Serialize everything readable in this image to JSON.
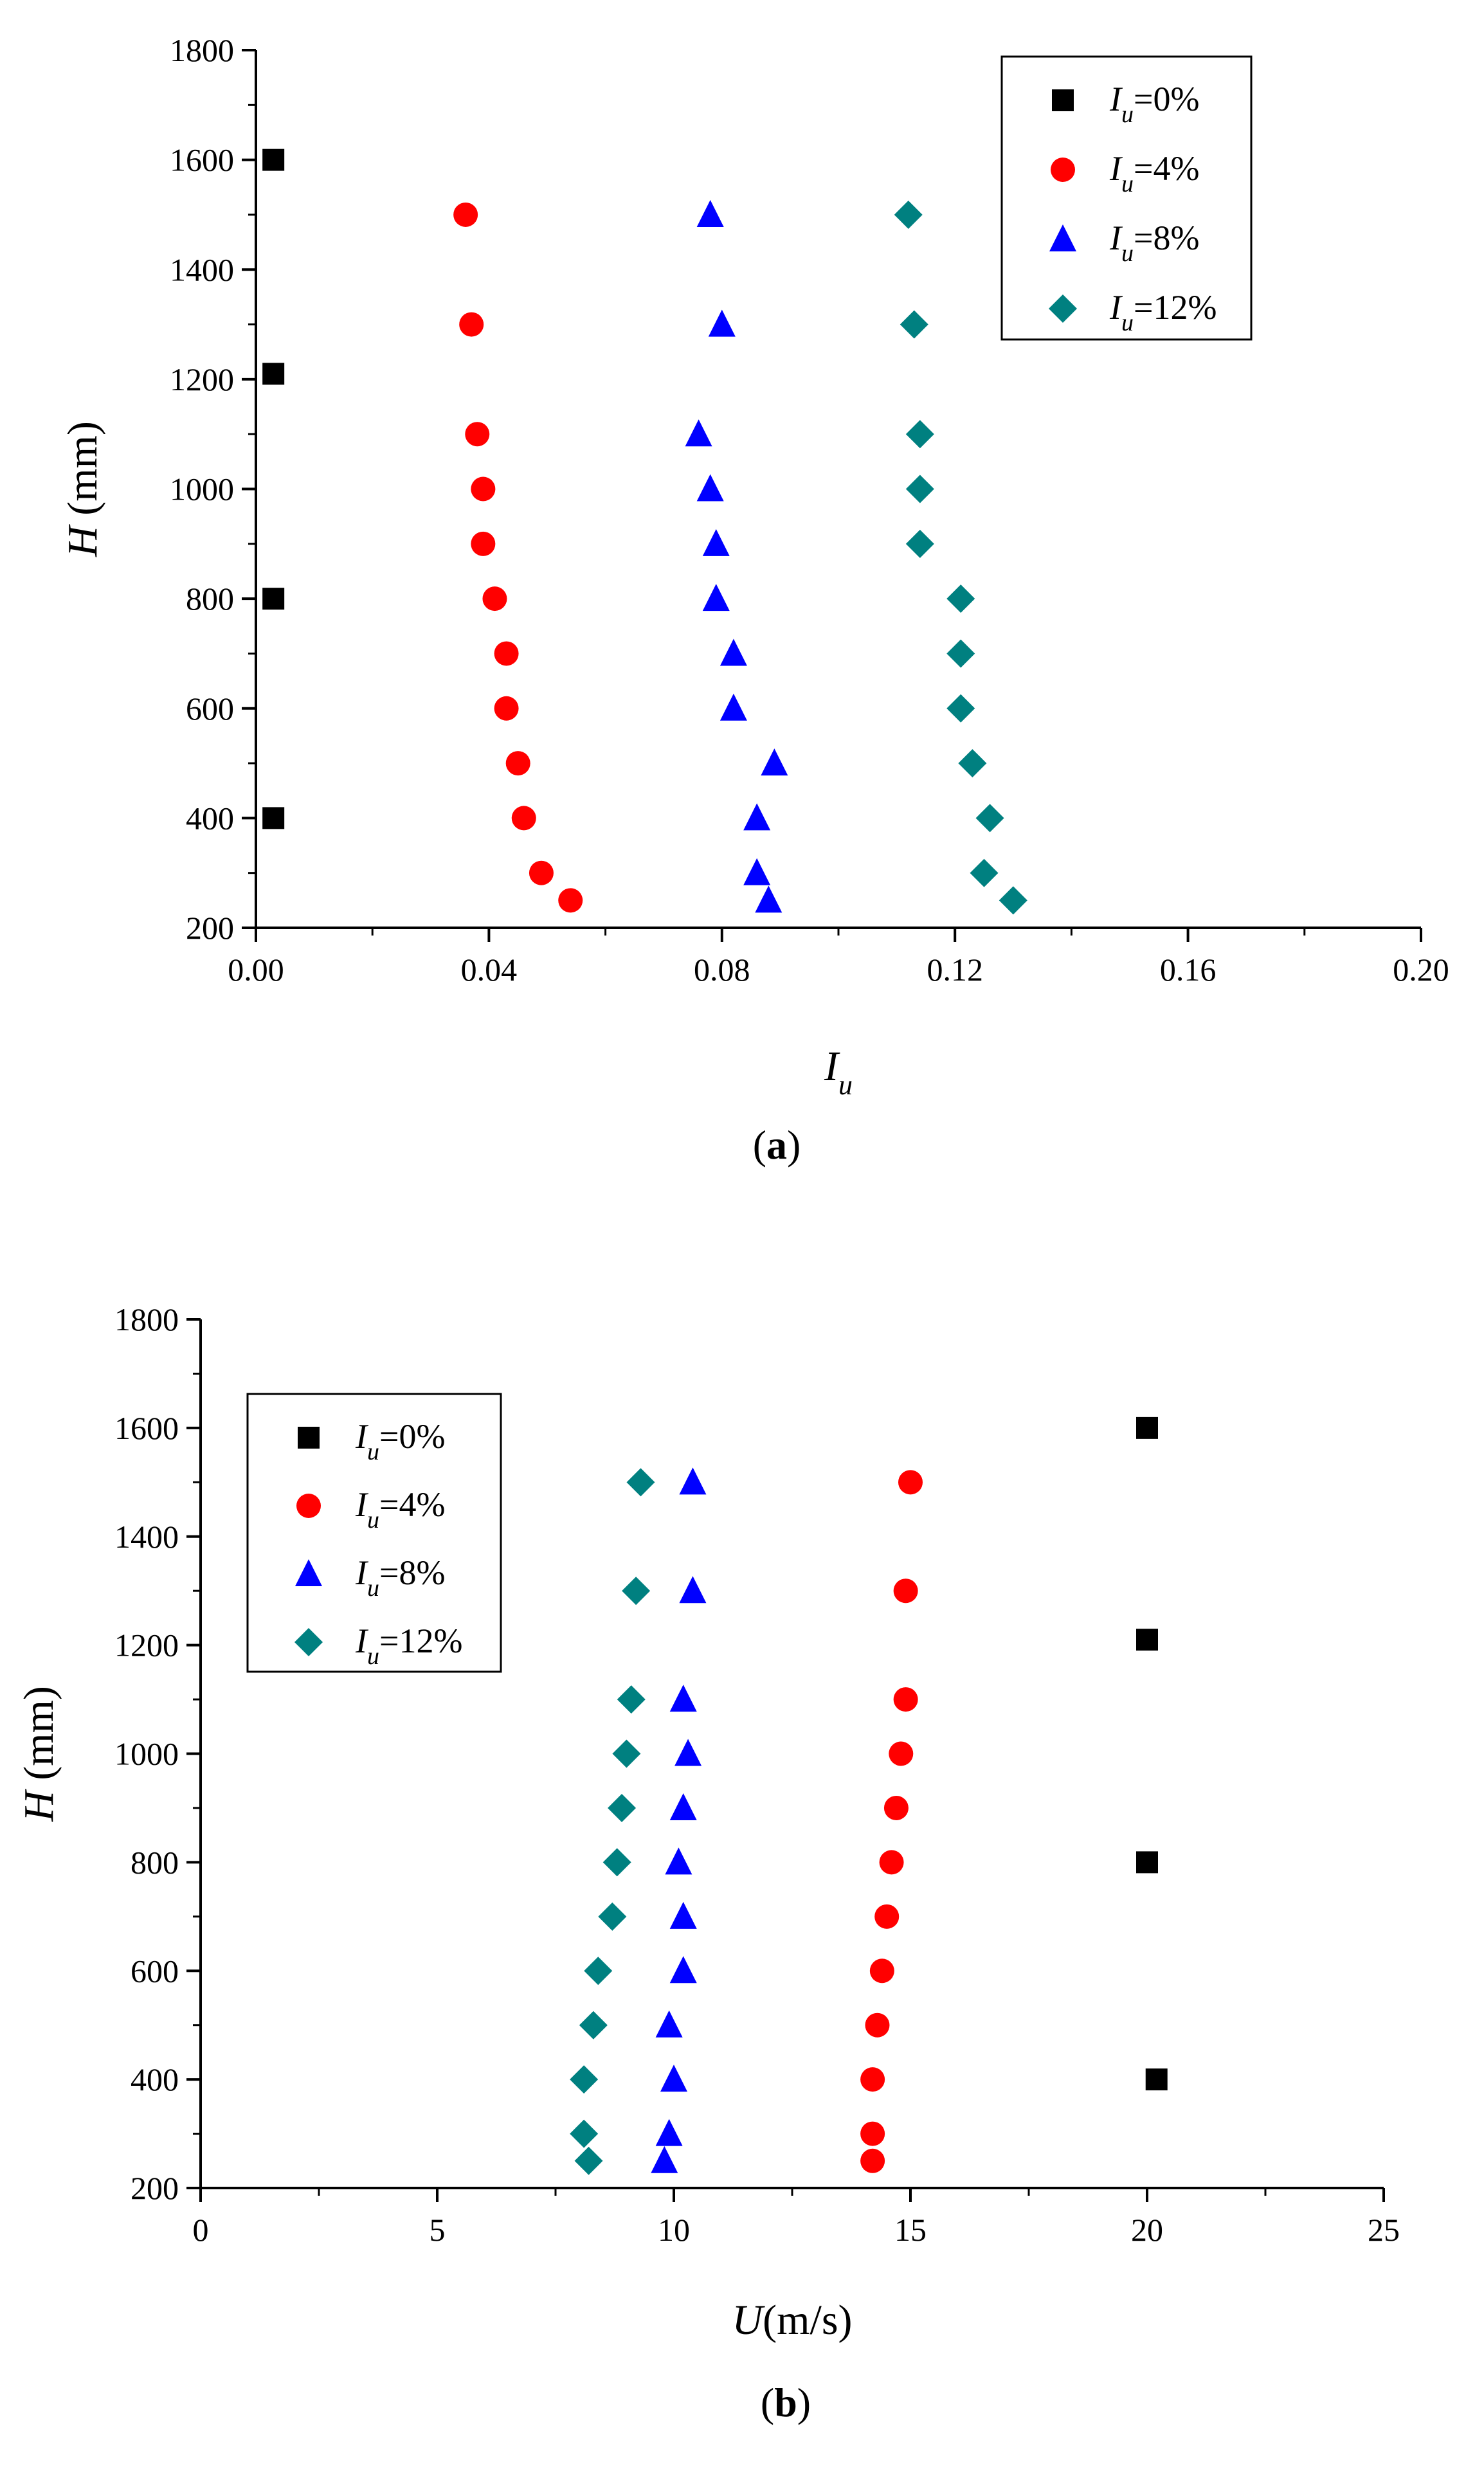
{
  "chart_data": [
    {
      "type": "scatter",
      "caption": "a",
      "xlabel": "I",
      "xlabel_sub": "u",
      "ylabel": "H",
      "ylabel_unit": " (mm)",
      "xlim": [
        0,
        0.2
      ],
      "ylim": [
        200,
        1800
      ],
      "xticks": [
        0,
        0.04,
        0.08,
        0.12,
        0.16,
        0.2
      ],
      "xtick_labels": [
        "0.00",
        "0.04",
        "0.08",
        "0.12",
        "0.16",
        "0.20"
      ],
      "yticks": [
        200,
        400,
        600,
        800,
        1000,
        1200,
        1400,
        1600,
        1800
      ],
      "ytick_labels": [
        "200",
        "400",
        "600",
        "800",
        "1000",
        "1200",
        "1400",
        "1600",
        "1800"
      ],
      "legend_position": "top-right",
      "series": [
        {
          "name": "Iu=0%",
          "legend_main": "I",
          "legend_sub": "u",
          "legend_rest": "=0%",
          "marker": "square",
          "color": "#000000",
          "x": [
            0.003,
            0.003,
            0.003,
            0.003
          ],
          "y": [
            1600,
            1210,
            800,
            400
          ]
        },
        {
          "name": "Iu=4%",
          "legend_main": "I",
          "legend_sub": "u",
          "legend_rest": "=4%",
          "marker": "circle",
          "color": "#ff0000",
          "x": [
            0.036,
            0.037,
            0.038,
            0.039,
            0.039,
            0.041,
            0.043,
            0.043,
            0.045,
            0.046,
            0.049,
            0.054
          ],
          "y": [
            1500,
            1300,
            1100,
            1000,
            900,
            800,
            700,
            600,
            500,
            400,
            300,
            250
          ]
        },
        {
          "name": "Iu=8%",
          "legend_main": "I",
          "legend_sub": "u",
          "legend_rest": "=8%",
          "marker": "triangle",
          "color": "#0000ff",
          "x": [
            0.078,
            0.08,
            0.076,
            0.078,
            0.079,
            0.079,
            0.082,
            0.082,
            0.089,
            0.086,
            0.086,
            0.088
          ],
          "y": [
            1500,
            1300,
            1100,
            1000,
            900,
            800,
            700,
            600,
            500,
            400,
            300,
            250
          ]
        },
        {
          "name": "Iu=12%",
          "legend_main": "I",
          "legend_sub": "u",
          "legend_rest": "=12%",
          "marker": "diamond",
          "color": "#008080",
          "x": [
            0.112,
            0.113,
            0.114,
            0.114,
            0.114,
            0.121,
            0.121,
            0.121,
            0.123,
            0.126,
            0.125,
            0.13
          ],
          "y": [
            1500,
            1300,
            1100,
            1000,
            900,
            800,
            700,
            600,
            500,
            400,
            300,
            250
          ]
        }
      ]
    },
    {
      "type": "scatter",
      "caption": "b",
      "xlabel": "U",
      "xlabel_unit": "(m/s)",
      "ylabel": "H",
      "ylabel_unit": " (mm)",
      "xlim": [
        0,
        25
      ],
      "ylim": [
        200,
        1800
      ],
      "xticks": [
        0,
        5,
        10,
        15,
        20,
        25
      ],
      "xtick_labels": [
        "0",
        "5",
        "10",
        "15",
        "20",
        "25"
      ],
      "yticks": [
        200,
        400,
        600,
        800,
        1000,
        1200,
        1400,
        1600,
        1800
      ],
      "ytick_labels": [
        "200",
        "400",
        "600",
        "800",
        "1000",
        "1200",
        "1400",
        "1600",
        "1800"
      ],
      "legend_position": "top-left",
      "series": [
        {
          "name": "Iu=0%",
          "legend_main": "I",
          "legend_sub": "u",
          "legend_rest": "=0%",
          "marker": "square",
          "color": "#000000",
          "x": [
            20.0,
            20.0,
            20.0,
            20.2
          ],
          "y": [
            1600,
            1210,
            800,
            400
          ]
        },
        {
          "name": "Iu=4%",
          "legend_main": "I",
          "legend_sub": "u",
          "legend_rest": "=4%",
          "marker": "circle",
          "color": "#ff0000",
          "x": [
            15.0,
            14.9,
            14.9,
            14.8,
            14.7,
            14.6,
            14.5,
            14.4,
            14.3,
            14.2,
            14.2,
            14.2
          ],
          "y": [
            1500,
            1300,
            1100,
            1000,
            900,
            800,
            700,
            600,
            500,
            400,
            300,
            250
          ]
        },
        {
          "name": "Iu=8%",
          "legend_main": "I",
          "legend_sub": "u",
          "legend_rest": "=8%",
          "marker": "triangle",
          "color": "#0000ff",
          "x": [
            10.4,
            10.4,
            10.2,
            10.3,
            10.2,
            10.1,
            10.2,
            10.2,
            9.9,
            10.0,
            9.9,
            9.8
          ],
          "y": [
            1500,
            1300,
            1100,
            1000,
            900,
            800,
            700,
            600,
            500,
            400,
            300,
            250
          ]
        },
        {
          "name": "Iu=12%",
          "legend_main": "I",
          "legend_sub": "u",
          "legend_rest": "=12%",
          "marker": "diamond",
          "color": "#008080",
          "x": [
            9.3,
            9.2,
            9.1,
            9.0,
            8.9,
            8.8,
            8.7,
            8.4,
            8.3,
            8.1,
            8.1,
            8.2
          ],
          "y": [
            1500,
            1300,
            1100,
            1000,
            900,
            800,
            700,
            600,
            500,
            400,
            300,
            250
          ]
        }
      ]
    }
  ]
}
